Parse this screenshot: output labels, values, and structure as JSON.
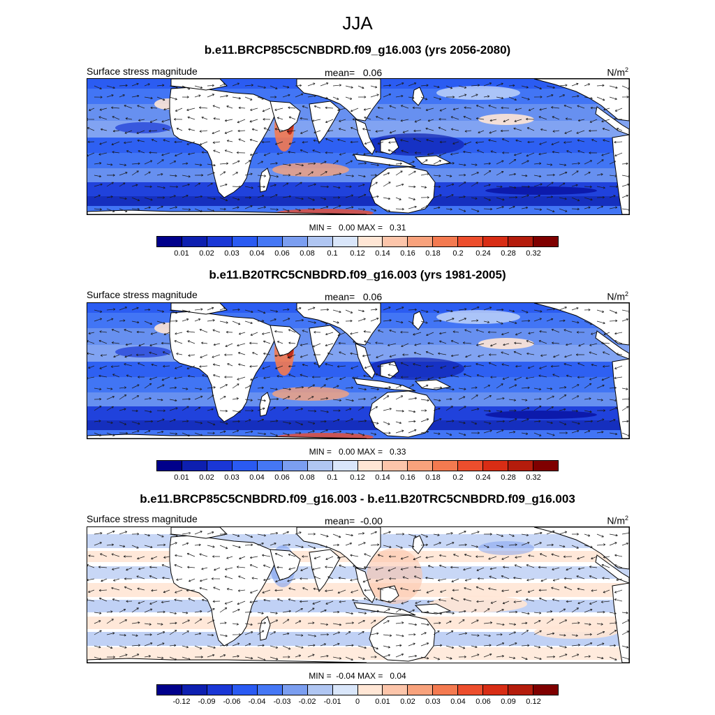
{
  "figure": {
    "title": "JJA"
  },
  "panels": [
    {
      "title": "b.e11.BRCP85C5CNBDRD.f09_g16.003 (yrs 2056-2080)",
      "left_label": "Surface stress magnitude",
      "mean_label": "mean=",
      "mean_value": "0.06",
      "units_base": "N/m",
      "units_exp": "2",
      "min_label": "MIN =",
      "min_value": "0.00",
      "max_label": "MAX =",
      "max_value": "0.31",
      "palette": "absolute"
    },
    {
      "title": "b.e11.B20TRC5CNBDRD.f09_g16.003 (yrs 1981-2005)",
      "left_label": "Surface stress magnitude",
      "mean_label": "mean=",
      "mean_value": "0.06",
      "units_base": "N/m",
      "units_exp": "2",
      "min_label": "MIN =",
      "min_value": "0.00",
      "max_label": "MAX =",
      "max_value": "0.33",
      "palette": "absolute"
    },
    {
      "title": "b.e11.BRCP85C5CNBDRD.f09_g16.003 - b.e11.B20TRC5CNBDRD.f09_g16.003",
      "left_label": "Surface stress magnitude",
      "mean_label": "mean=",
      "mean_value": "-0.00",
      "units_base": "N/m",
      "units_exp": "2",
      "min_label": "MIN =",
      "min_value": "-0.04",
      "max_label": "MAX =",
      "max_value": "0.04",
      "palette": "difference"
    }
  ],
  "colors": {
    "palette": [
      "#00008b",
      "#0d1fb0",
      "#1a37d6",
      "#2a5af2",
      "#4577f5",
      "#7b9ef0",
      "#b0c6f2",
      "#d9e6fa",
      "#ffe6d5",
      "#fcc5aa",
      "#f8a27c",
      "#f47a50",
      "#ed4e2d",
      "#d82d15",
      "#b41c0c",
      "#7f0000"
    ],
    "land": "#ffffff",
    "coast": "#000000",
    "arrow": "#1a1a1a"
  },
  "chart_data": [
    {
      "type": "heatmap",
      "title": "b.e11.BRCP85C5CNBDRD.f09_g16.003 (yrs 2056-2080)",
      "variable": "Surface stress magnitude",
      "units": "N/m2",
      "mean": 0.06,
      "min": 0.0,
      "max": 0.31,
      "colorbar_levels": [
        "0.01",
        "0.02",
        "0.03",
        "0.04",
        "0.06",
        "0.08",
        "0.1",
        "0.12",
        "0.14",
        "0.16",
        "0.18",
        "0.2",
        "0.24",
        "0.28",
        "0.32"
      ],
      "overlay": "wind stress vectors"
    },
    {
      "type": "heatmap",
      "title": "b.e11.B20TRC5CNBDRD.f09_g16.003 (yrs 1981-2005)",
      "variable": "Surface stress magnitude",
      "units": "N/m2",
      "mean": 0.06,
      "min": 0.0,
      "max": 0.33,
      "colorbar_levels": [
        "0.01",
        "0.02",
        "0.03",
        "0.04",
        "0.06",
        "0.08",
        "0.1",
        "0.12",
        "0.14",
        "0.16",
        "0.18",
        "0.2",
        "0.24",
        "0.28",
        "0.32"
      ],
      "overlay": "wind stress vectors"
    },
    {
      "type": "heatmap",
      "title": "b.e11.BRCP85C5CNBDRD.f09_g16.003 - b.e11.B20TRC5CNBDRD.f09_g16.003",
      "variable": "Surface stress magnitude",
      "units": "N/m2",
      "mean": -0.0,
      "min": -0.04,
      "max": 0.04,
      "colorbar_levels": [
        "-0.12",
        "-0.09",
        "-0.06",
        "-0.04",
        "-0.03",
        "-0.02",
        "-0.01",
        "0",
        "0.01",
        "0.02",
        "0.03",
        "0.04",
        "0.06",
        "0.09",
        "0.12"
      ],
      "overlay": "wind stress difference vectors"
    }
  ]
}
